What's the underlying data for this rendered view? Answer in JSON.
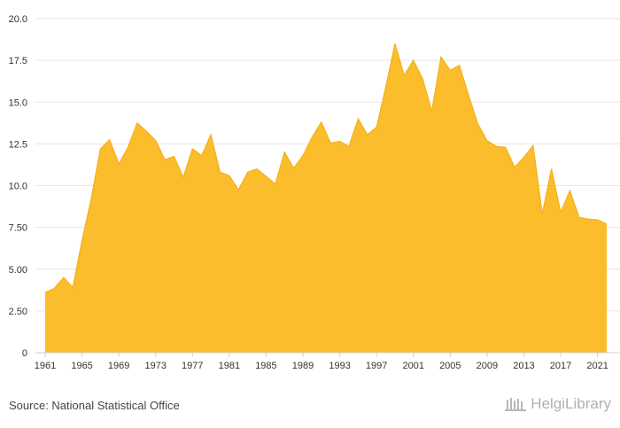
{
  "chart_data": {
    "type": "area",
    "title": "",
    "xlabel": "",
    "ylabel": "",
    "color": "#FBBD2B",
    "line_color": "#F5B01A",
    "grid_color": "#E6E6E6",
    "grid": true,
    "xlim": [
      1961,
      2022
    ],
    "ylim": [
      0,
      20
    ],
    "y_ticks": [
      {
        "value": 0,
        "label": "0"
      },
      {
        "value": 2.5,
        "label": "2.50"
      },
      {
        "value": 5,
        "label": "5.00"
      },
      {
        "value": 7.5,
        "label": "7.50"
      },
      {
        "value": 10,
        "label": "10.0"
      },
      {
        "value": 12.5,
        "label": "12.5"
      },
      {
        "value": 15,
        "label": "15.0"
      },
      {
        "value": 17.5,
        "label": "17.5"
      },
      {
        "value": 20,
        "label": "20.0"
      }
    ],
    "x_ticks": [
      {
        "value": 1961,
        "label": "1961"
      },
      {
        "value": 1965,
        "label": "1965"
      },
      {
        "value": 1969,
        "label": "1969"
      },
      {
        "value": 1973,
        "label": "1973"
      },
      {
        "value": 1977,
        "label": "1977"
      },
      {
        "value": 1981,
        "label": "1981"
      },
      {
        "value": 1985,
        "label": "1985"
      },
      {
        "value": 1989,
        "label": "1989"
      },
      {
        "value": 1993,
        "label": "1993"
      },
      {
        "value": 1997,
        "label": "1997"
      },
      {
        "value": 2001,
        "label": "2001"
      },
      {
        "value": 2005,
        "label": "2005"
      },
      {
        "value": 2009,
        "label": "2009"
      },
      {
        "value": 2013,
        "label": "2013"
      },
      {
        "value": 2017,
        "label": "2017"
      },
      {
        "value": 2021,
        "label": "2021"
      }
    ],
    "x": [
      1961,
      1962,
      1963,
      1964,
      1965,
      1966,
      1967,
      1968,
      1969,
      1970,
      1971,
      1972,
      1973,
      1974,
      1975,
      1976,
      1977,
      1978,
      1979,
      1980,
      1981,
      1982,
      1983,
      1984,
      1985,
      1986,
      1987,
      1988,
      1989,
      1990,
      1991,
      1992,
      1993,
      1994,
      1995,
      1996,
      1997,
      1998,
      1999,
      2000,
      2001,
      2002,
      2003,
      2004,
      2005,
      2006,
      2007,
      2008,
      2009,
      2010,
      2011,
      2012,
      2013,
      2014,
      2015,
      2016,
      2017,
      2018,
      2019,
      2020,
      2021,
      2022
    ],
    "values": [
      3.6,
      3.85,
      4.5,
      3.9,
      6.7,
      9.2,
      12.2,
      12.75,
      11.3,
      12.3,
      13.75,
      13.25,
      12.7,
      11.55,
      11.75,
      10.5,
      12.2,
      11.8,
      13.05,
      10.8,
      10.6,
      9.75,
      10.8,
      11.0,
      10.55,
      10.1,
      12.0,
      11.05,
      11.8,
      12.9,
      13.8,
      12.55,
      12.65,
      12.35,
      14.0,
      13.05,
      13.5,
      15.9,
      18.5,
      16.6,
      17.5,
      16.4,
      14.45,
      17.7,
      16.9,
      17.2,
      15.4,
      13.7,
      12.7,
      12.35,
      12.3,
      11.1,
      11.7,
      12.4,
      8.3,
      11.0,
      8.4,
      9.7,
      8.1,
      8.0,
      7.95,
      7.7
    ]
  },
  "footer": {
    "source": "Source: National Statistical Office",
    "logo_text": "HelgiLibrary"
  }
}
